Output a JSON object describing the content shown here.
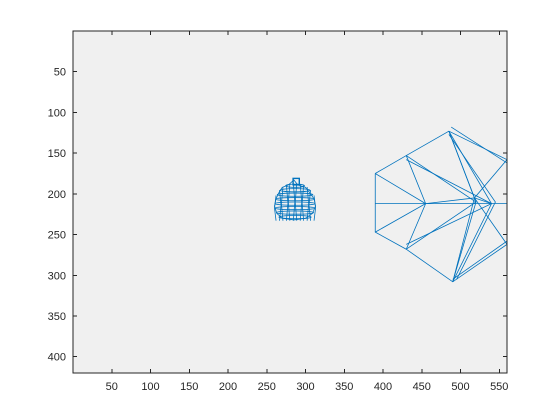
{
  "chart_data": {
    "type": "line",
    "title": "",
    "xlabel": "",
    "ylabel": "",
    "xlim": [
      0,
      560
    ],
    "ylim": [
      0,
      420
    ],
    "y_reversed": true,
    "grid": false,
    "axes_background": "#f0f0f0",
    "line_color": "#0072BD",
    "x_ticks": [
      50,
      100,
      150,
      200,
      250,
      300,
      350,
      400,
      450,
      500,
      550
    ],
    "y_ticks": [
      50,
      100,
      150,
      200,
      250,
      300,
      350,
      400
    ],
    "series": [
      {
        "segments": [
          [
            [
              390,
              175
            ],
            [
              390,
              247
            ],
            [
              430,
              268
            ],
            [
              490,
              308
            ],
            [
              560,
              262
            ],
            [
              560,
              158
            ],
            [
              485,
              123
            ],
            [
              430,
              153
            ],
            [
              390,
              175
            ]
          ],
          [
            [
              390,
              175
            ],
            [
              455,
              212
            ],
            [
              390,
              247
            ]
          ],
          [
            [
              430,
              153
            ],
            [
              455,
              212
            ],
            [
              430,
              268
            ]
          ],
          [
            [
              485,
              123
            ],
            [
              518,
              205
            ],
            [
              560,
              158
            ]
          ],
          [
            [
              490,
              308
            ],
            [
              518,
              205
            ],
            [
              560,
              262
            ]
          ],
          [
            [
              390,
              212
            ],
            [
              560,
              212
            ]
          ],
          [
            [
              430,
              153
            ],
            [
              520,
              210
            ],
            [
              490,
              308
            ]
          ],
          [
            [
              430,
              268
            ],
            [
              520,
              210
            ],
            [
              485,
              123
            ]
          ],
          [
            [
              485,
              123
            ],
            [
              540,
              212
            ],
            [
              490,
              308
            ]
          ],
          [
            [
              455,
              212
            ],
            [
              518,
              205
            ],
            [
              540,
              212
            ]
          ],
          [
            [
              490,
              305
            ],
            [
              560,
              258
            ]
          ],
          [
            [
              488,
              118
            ],
            [
              560,
              162
            ]
          ],
          [
            [
              430,
              158
            ],
            [
              540,
              212
            ],
            [
              430,
              262
            ]
          ],
          [
            [
              485,
              127
            ],
            [
              545,
              210
            ],
            [
              495,
              305
            ]
          ]
        ]
      },
      {
        "shape": "pot",
        "x_range": [
          260,
          313
        ],
        "y_range": [
          182,
          232
        ],
        "points": [
          [
            270,
            192
          ],
          [
            278,
            189
          ],
          [
            285,
            183
          ],
          [
            290,
            189
          ],
          [
            300,
            192
          ],
          [
            305,
            198
          ],
          [
            311,
            206
          ],
          [
            313,
            215
          ],
          [
            309,
            224
          ],
          [
            300,
            230
          ],
          [
            285,
            232
          ],
          [
            270,
            230
          ],
          [
            263,
            224
          ],
          [
            260,
            215
          ],
          [
            262,
            206
          ],
          [
            266,
            198
          ],
          [
            270,
            192
          ]
        ]
      }
    ]
  }
}
